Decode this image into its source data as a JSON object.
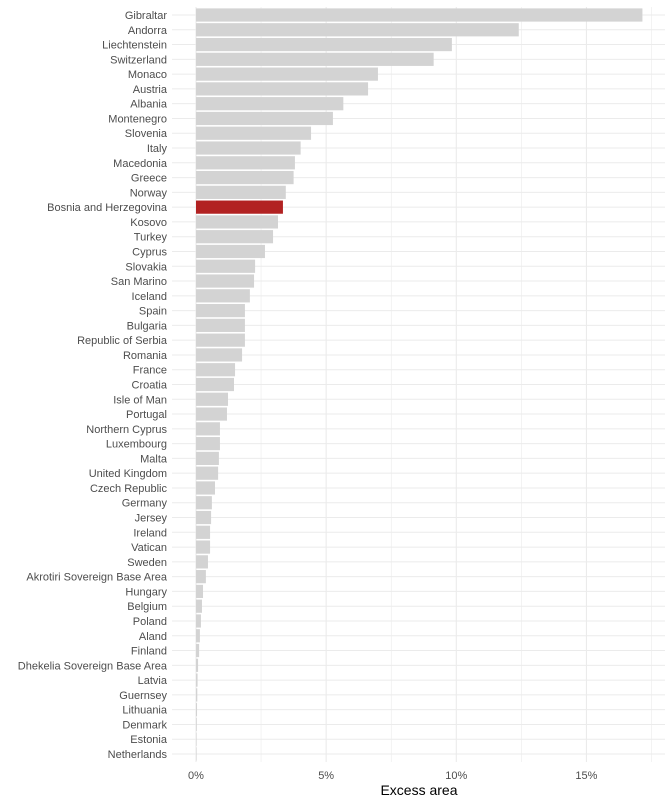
{
  "chart_data": {
    "type": "bar",
    "orientation": "horizontal",
    "categories": [
      "Gibraltar",
      "Andorra",
      "Liechtenstein",
      "Switzerland",
      "Monaco",
      "Austria",
      "Albania",
      "Montenegro",
      "Slovenia",
      "Italy",
      "Macedonia",
      "Greece",
      "Norway",
      "Bosnia and Herzegovina",
      "Kosovo",
      "Turkey",
      "Cyprus",
      "Slovakia",
      "San Marino",
      "Iceland",
      "Spain",
      "Bulgaria",
      "Republic of Serbia",
      "Romania",
      "France",
      "Croatia",
      "Isle of Man",
      "Portugal",
      "Northern Cyprus",
      "Luxembourg",
      "Malta",
      "United Kingdom",
      "Czech Republic",
      "Germany",
      "Jersey",
      "Ireland",
      "Vatican",
      "Sweden",
      "Akrotiri Sovereign Base Area",
      "Hungary",
      "Belgium",
      "Poland",
      "Aland",
      "Finland",
      "Dhekelia Sovereign Base Area",
      "Latvia",
      "Guernsey",
      "Lithuania",
      "Denmark",
      "Estonia",
      "Netherlands"
    ],
    "values": [
      17.15,
      12.4,
      9.83,
      9.13,
      6.99,
      6.61,
      5.66,
      5.26,
      4.42,
      4.02,
      3.8,
      3.75,
      3.45,
      3.34,
      3.15,
      2.96,
      2.65,
      2.27,
      2.23,
      2.07,
      1.88,
      1.88,
      1.88,
      1.77,
      1.5,
      1.46,
      1.23,
      1.19,
      0.92,
      0.92,
      0.88,
      0.85,
      0.73,
      0.61,
      0.58,
      0.54,
      0.54,
      0.46,
      0.38,
      0.27,
      0.23,
      0.19,
      0.15,
      0.12,
      0.08,
      0.06,
      0.05,
      0.04,
      0.03,
      0.02,
      0.01
    ],
    "highlight": "Bosnia and Herzegovina",
    "colors": {
      "default": "#d3d3d3",
      "highlight": "#b22222",
      "grid": "#ebebeb"
    },
    "xlabel": "Excess area",
    "ylabel": "",
    "xlim": [
      0,
      17.9
    ],
    "xticks": [
      0,
      5,
      10,
      15
    ],
    "xtick_labels": [
      "0%",
      "5%",
      "10%",
      "15%"
    ],
    "grid": true
  }
}
